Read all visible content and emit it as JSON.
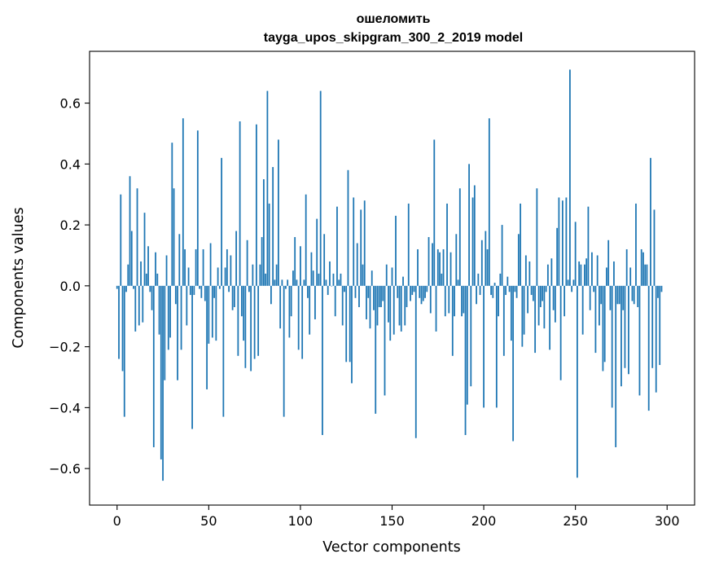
{
  "chart_data": {
    "type": "bar",
    "title": "ошеломить",
    "subtitle": "tayga_upos_skipgram_300_2_2019 model",
    "xlabel": "Vector components",
    "ylabel": "Components values",
    "xlim": [
      -15,
      315
    ],
    "ylim": [
      -0.72,
      0.77
    ],
    "xticks": [
      0,
      50,
      100,
      150,
      200,
      250,
      300
    ],
    "yticks": [
      -0.6,
      -0.4,
      -0.2,
      0.0,
      0.2,
      0.4,
      0.6
    ],
    "xtick_labels": [
      "0",
      "50",
      "100",
      "150",
      "200",
      "250",
      "300"
    ],
    "ytick_labels": [
      "−0.6",
      "−0.4",
      "−0.2",
      "0.0",
      "0.2",
      "0.4",
      "0.6"
    ],
    "bar_color": "#1f77b4",
    "grid": false,
    "x_start": 0,
    "values": [
      -0.01,
      -0.24,
      0.3,
      -0.28,
      -0.43,
      -0.02,
      0.07,
      0.36,
      0.18,
      -0.01,
      -0.15,
      0.32,
      -0.13,
      0.08,
      -0.12,
      0.24,
      0.04,
      0.13,
      -0.02,
      -0.08,
      -0.53,
      0.11,
      0.04,
      -0.16,
      -0.57,
      -0.64,
      -0.31,
      0.1,
      -0.21,
      -0.17,
      0.47,
      0.32,
      -0.06,
      -0.31,
      0.17,
      -0.21,
      0.55,
      0.12,
      -0.13,
      0.06,
      -0.03,
      -0.47,
      -0.03,
      0.12,
      0.51,
      -0.01,
      -0.04,
      0.12,
      -0.05,
      -0.34,
      -0.19,
      0.14,
      -0.17,
      -0.04,
      -0.18,
      0.06,
      -0.01,
      0.42,
      -0.43,
      0.06,
      0.12,
      -0.02,
      0.1,
      -0.08,
      -0.07,
      0.18,
      -0.23,
      0.54,
      -0.1,
      -0.18,
      -0.27,
      0.15,
      -0.02,
      -0.28,
      0.07,
      -0.24,
      0.53,
      -0.23,
      0.07,
      0.16,
      0.35,
      0.04,
      0.64,
      0.27,
      -0.06,
      0.39,
      0.02,
      0.07,
      0.48,
      -0.14,
      0.02,
      -0.43,
      -0.01,
      0.02,
      -0.17,
      -0.1,
      0.05,
      0.16,
      0.02,
      -0.21,
      0.13,
      -0.24,
      0.02,
      0.3,
      -0.04,
      -0.16,
      0.11,
      0.05,
      -0.11,
      0.22,
      0.04,
      0.64,
      -0.49,
      0.17,
      0.02,
      -0.03,
      0.08,
      0.0,
      0.04,
      -0.1,
      0.26,
      0.02,
      0.04,
      -0.13,
      -0.02,
      -0.25,
      0.38,
      -0.25,
      -0.32,
      0.29,
      -0.04,
      0.14,
      -0.07,
      0.25,
      0.07,
      0.28,
      -0.11,
      -0.04,
      -0.14,
      0.05,
      -0.08,
      -0.42,
      -0.13,
      -0.07,
      -0.07,
      -0.05,
      -0.36,
      0.07,
      -0.12,
      -0.18,
      0.06,
      -0.16,
      0.23,
      -0.04,
      -0.13,
      -0.15,
      0.03,
      -0.13,
      -0.07,
      0.27,
      -0.05,
      -0.03,
      -0.02,
      -0.5,
      0.12,
      -0.04,
      -0.06,
      -0.05,
      -0.04,
      -0.02,
      0.16,
      -0.09,
      0.14,
      0.48,
      -0.15,
      0.12,
      0.11,
      0.04,
      0.12,
      -0.1,
      0.27,
      -0.09,
      0.11,
      -0.23,
      -0.1,
      0.17,
      0.02,
      0.32,
      -0.1,
      -0.09,
      -0.49,
      -0.39,
      0.4,
      -0.33,
      0.29,
      0.33,
      -0.06,
      0.04,
      -0.03,
      0.15,
      -0.4,
      0.18,
      0.12,
      0.55,
      -0.03,
      -0.04,
      0.01,
      -0.4,
      -0.1,
      0.04,
      0.2,
      -0.23,
      -0.03,
      0.03,
      -0.02,
      -0.18,
      -0.51,
      -0.02,
      -0.04,
      0.17,
      0.27,
      -0.2,
      -0.16,
      0.1,
      -0.09,
      0.08,
      -0.03,
      -0.05,
      -0.22,
      0.32,
      -0.13,
      -0.07,
      -0.05,
      -0.14,
      -0.02,
      0.07,
      -0.21,
      0.09,
      -0.08,
      -0.12,
      0.19,
      0.29,
      -0.31,
      0.28,
      -0.1,
      0.29,
      0.02,
      0.71,
      -0.02,
      0.02,
      0.21,
      -0.63,
      0.08,
      0.07,
      -0.16,
      0.07,
      0.09,
      0.26,
      -0.08,
      0.11,
      -0.02,
      -0.22,
      0.1,
      -0.13,
      -0.06,
      -0.28,
      -0.25,
      0.06,
      0.15,
      -0.08,
      -0.4,
      0.08,
      -0.53,
      -0.06,
      -0.06,
      -0.33,
      -0.08,
      -0.27,
      0.12,
      -0.29,
      0.06,
      -0.05,
      -0.06,
      0.27,
      -0.07,
      -0.36,
      0.12,
      0.11,
      0.07,
      0.07,
      -0.41,
      0.42,
      -0.27,
      0.25,
      -0.35,
      -0.04,
      -0.26,
      -0.02
    ]
  }
}
